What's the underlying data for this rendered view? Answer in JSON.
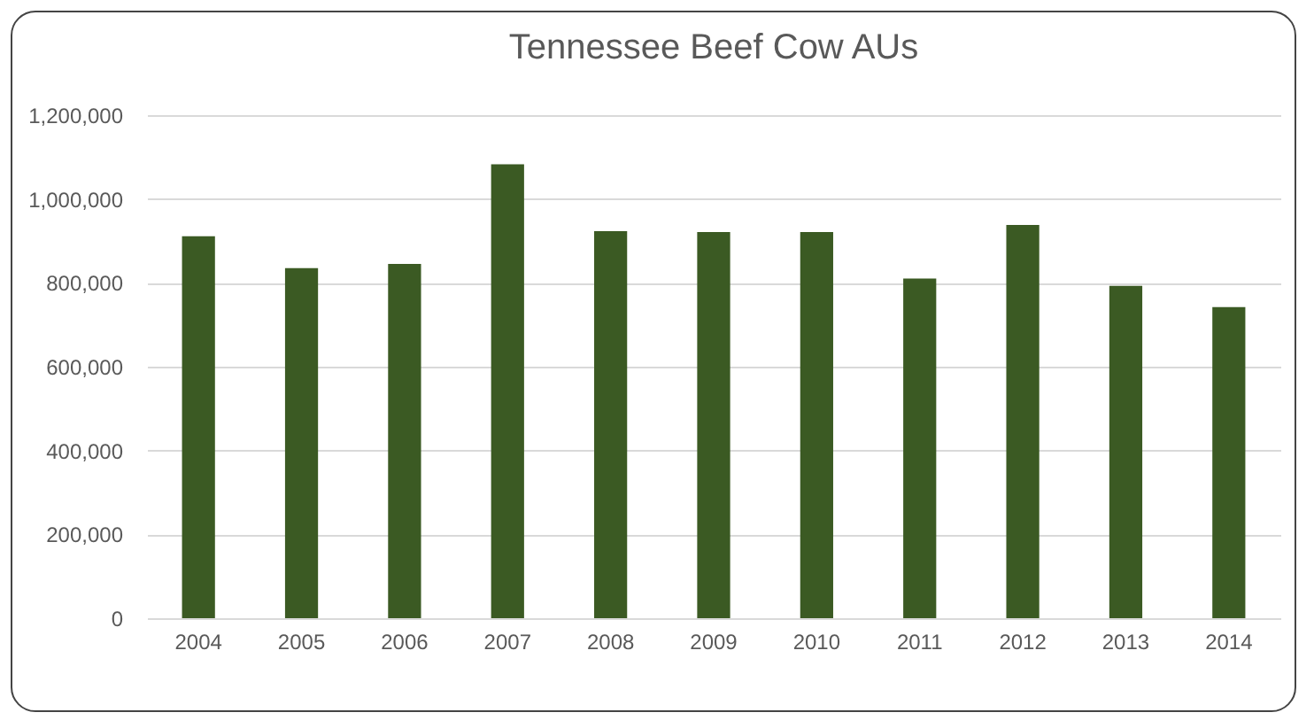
{
  "chart_data": {
    "type": "bar",
    "title": "Tennessee Beef Cow AUs",
    "categories": [
      "2004",
      "2005",
      "2006",
      "2007",
      "2008",
      "2009",
      "2010",
      "2011",
      "2012",
      "2013",
      "2014"
    ],
    "values": [
      911000,
      835000,
      845000,
      1083000,
      923000,
      921000,
      921000,
      810000,
      938000,
      793000,
      742000
    ],
    "color": "#3b5a23",
    "ylim": [
      0,
      1200000
    ],
    "yticks": [
      0,
      {
        "value": 200000,
        "label": "200,000"
      },
      {
        "value": 400000,
        "label": "400,000"
      },
      {
        "value": 600000,
        "label": "600,000"
      },
      {
        "value": 800000,
        "label": "800,000"
      },
      {
        "value": 1000000,
        "label": "1,000,000"
      },
      {
        "value": 1200000,
        "label": "1,200,000"
      }
    ],
    "grid": "y"
  }
}
